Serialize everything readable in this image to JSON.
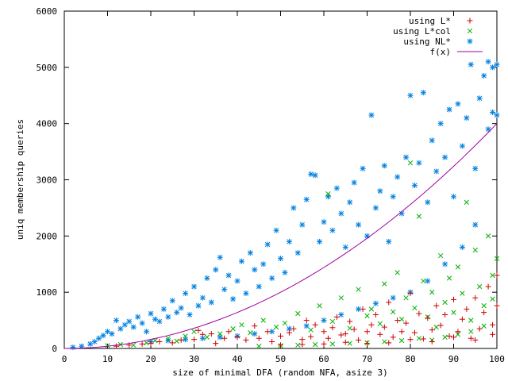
{
  "chart_data": {
    "type": "scatter",
    "xlabel": "size of minimal DFA (random NFA, asize 3)",
    "ylabel": "uniq membership queries",
    "xlim": [
      0,
      100
    ],
    "ylim": [
      0,
      6000
    ],
    "x_ticks": [
      0,
      10,
      20,
      30,
      40,
      50,
      60,
      70,
      80,
      90,
      100
    ],
    "y_ticks": [
      0,
      1000,
      2000,
      3000,
      4000,
      5000,
      6000
    ],
    "x_tick_labels": [
      "0",
      "10",
      "20",
      "30",
      "40",
      "50",
      "60",
      "70",
      "80",
      "90",
      "100"
    ],
    "y_tick_labels": [
      "0",
      "1000",
      "2000",
      "3000",
      "4000",
      "5000",
      "6000"
    ],
    "grid": false,
    "legend_position": "top-right",
    "series": [
      {
        "name": "using L*",
        "marker": "plus",
        "color": "#cc0000",
        "points": [
          [
            12,
            40
          ],
          [
            15,
            60
          ],
          [
            18,
            80
          ],
          [
            20,
            90
          ],
          [
            22,
            120
          ],
          [
            25,
            100
          ],
          [
            27,
            150
          ],
          [
            30,
            160
          ],
          [
            31,
            320
          ],
          [
            32,
            250
          ],
          [
            34,
            260
          ],
          [
            35,
            90
          ],
          [
            37,
            180
          ],
          [
            38,
            300
          ],
          [
            40,
            200
          ],
          [
            42,
            150
          ],
          [
            44,
            400
          ],
          [
            45,
            180
          ],
          [
            47,
            300
          ],
          [
            48,
            120
          ],
          [
            50,
            220
          ],
          [
            52,
            280
          ],
          [
            53,
            350
          ],
          [
            55,
            160
          ],
          [
            56,
            500
          ],
          [
            57,
            210
          ],
          [
            58,
            420
          ],
          [
            60,
            300
          ],
          [
            61,
            180
          ],
          [
            62,
            370
          ],
          [
            63,
            560
          ],
          [
            64,
            240
          ],
          [
            65,
            260
          ],
          [
            66,
            480
          ],
          [
            67,
            340
          ],
          [
            68,
            150
          ],
          [
            69,
            700
          ],
          [
            70,
            300
          ],
          [
            71,
            420
          ],
          [
            72,
            600
          ],
          [
            73,
            250
          ],
          [
            74,
            380
          ],
          [
            75,
            820
          ],
          [
            76,
            200
          ],
          [
            77,
            500
          ],
          [
            78,
            300
          ],
          [
            79,
            450
          ],
          [
            80,
            980
          ],
          [
            81,
            280
          ],
          [
            82,
            620
          ],
          [
            83,
            170
          ],
          [
            84,
            540
          ],
          [
            85,
            330
          ],
          [
            86,
            760
          ],
          [
            87,
            410
          ],
          [
            88,
            600
          ],
          [
            89,
            220
          ],
          [
            90,
            870
          ],
          [
            91,
            300
          ],
          [
            92,
            520
          ],
          [
            93,
            700
          ],
          [
            94,
            180
          ],
          [
            95,
            900
          ],
          [
            96,
            350
          ],
          [
            97,
            640
          ],
          [
            98,
            1100
          ],
          [
            99,
            420
          ],
          [
            100,
            760
          ],
          [
            100,
            1300
          ],
          [
            99,
            250
          ],
          [
            95,
            150
          ],
          [
            90,
            200
          ],
          [
            85,
            120
          ],
          [
            80,
            160
          ],
          [
            75,
            100
          ],
          [
            70,
            90
          ],
          [
            65,
            110
          ],
          [
            60,
            80
          ],
          [
            55,
            70
          ],
          [
            50,
            60
          ]
        ]
      },
      {
        "name": "using L*col",
        "marker": "cross",
        "color": "#00b000",
        "points": [
          [
            10,
            50
          ],
          [
            13,
            70
          ],
          [
            16,
            60
          ],
          [
            19,
            100
          ],
          [
            21,
            140
          ],
          [
            24,
            180
          ],
          [
            26,
            130
          ],
          [
            28,
            220
          ],
          [
            30,
            300
          ],
          [
            33,
            200
          ],
          [
            36,
            260
          ],
          [
            39,
            350
          ],
          [
            41,
            420
          ],
          [
            43,
            280
          ],
          [
            46,
            500
          ],
          [
            49,
            380
          ],
          [
            51,
            450
          ],
          [
            54,
            620
          ],
          [
            57,
            330
          ],
          [
            59,
            760
          ],
          [
            61,
            2750
          ],
          [
            62,
            480
          ],
          [
            64,
            900
          ],
          [
            66,
            360
          ],
          [
            68,
            1050
          ],
          [
            70,
            580
          ],
          [
            71,
            700
          ],
          [
            73,
            440
          ],
          [
            74,
            1150
          ],
          [
            76,
            650
          ],
          [
            77,
            1350
          ],
          [
            78,
            520
          ],
          [
            79,
            900
          ],
          [
            80,
            3300
          ],
          [
            81,
            720
          ],
          [
            82,
            2350
          ],
          [
            83,
            1200
          ],
          [
            84,
            560
          ],
          [
            85,
            1000
          ],
          [
            86,
            380
          ],
          [
            87,
            1650
          ],
          [
            88,
            820
          ],
          [
            89,
            1250
          ],
          [
            90,
            640
          ],
          [
            91,
            1450
          ],
          [
            92,
            980
          ],
          [
            93,
            2600
          ],
          [
            94,
            500
          ],
          [
            95,
            1750
          ],
          [
            96,
            1100
          ],
          [
            97,
            760
          ],
          [
            98,
            2000
          ],
          [
            99,
            1300
          ],
          [
            100,
            1600
          ],
          [
            99,
            880
          ],
          [
            97,
            400
          ],
          [
            94,
            300
          ],
          [
            91,
            250
          ],
          [
            88,
            200
          ],
          [
            85,
            150
          ],
          [
            82,
            180
          ],
          [
            78,
            140
          ],
          [
            74,
            120
          ],
          [
            70,
            100
          ],
          [
            66,
            90
          ],
          [
            62,
            80
          ],
          [
            58,
            70
          ],
          [
            54,
            60
          ],
          [
            50,
            50
          ],
          [
            45,
            40
          ]
        ]
      },
      {
        "name": "using NL*",
        "marker": "star",
        "color": "#0080e0",
        "points": [
          [
            2,
            20
          ],
          [
            4,
            40
          ],
          [
            6,
            80
          ],
          [
            7,
            120
          ],
          [
            8,
            180
          ],
          [
            9,
            230
          ],
          [
            10,
            300
          ],
          [
            11,
            260
          ],
          [
            12,
            500
          ],
          [
            13,
            350
          ],
          [
            14,
            420
          ],
          [
            15,
            480
          ],
          [
            16,
            380
          ],
          [
            17,
            560
          ],
          [
            18,
            450
          ],
          [
            19,
            300
          ],
          [
            20,
            620
          ],
          [
            21,
            520
          ],
          [
            22,
            480
          ],
          [
            23,
            700
          ],
          [
            24,
            560
          ],
          [
            25,
            850
          ],
          [
            26,
            640
          ],
          [
            27,
            720
          ],
          [
            28,
            980
          ],
          [
            29,
            600
          ],
          [
            30,
            1100
          ],
          [
            31,
            760
          ],
          [
            32,
            900
          ],
          [
            33,
            1250
          ],
          [
            34,
            820
          ],
          [
            35,
            1400
          ],
          [
            36,
            1620
          ],
          [
            37,
            1050
          ],
          [
            38,
            1300
          ],
          [
            39,
            880
          ],
          [
            40,
            1200
          ],
          [
            41,
            1550
          ],
          [
            42,
            980
          ],
          [
            43,
            1700
          ],
          [
            44,
            1400
          ],
          [
            45,
            1100
          ],
          [
            46,
            1500
          ],
          [
            47,
            1850
          ],
          [
            48,
            1250
          ],
          [
            49,
            2100
          ],
          [
            50,
            1600
          ],
          [
            51,
            1350
          ],
          [
            52,
            1900
          ],
          [
            53,
            2500
          ],
          [
            54,
            1700
          ],
          [
            55,
            2200
          ],
          [
            56,
            2650
          ],
          [
            57,
            3100
          ],
          [
            58,
            3080
          ],
          [
            59,
            1900
          ],
          [
            60,
            2250
          ],
          [
            61,
            2700
          ],
          [
            62,
            2100
          ],
          [
            63,
            2850
          ],
          [
            64,
            2400
          ],
          [
            65,
            1800
          ],
          [
            66,
            2600
          ],
          [
            67,
            2950
          ],
          [
            68,
            2200
          ],
          [
            69,
            3200
          ],
          [
            70,
            2000
          ],
          [
            71,
            4150
          ],
          [
            72,
            2500
          ],
          [
            73,
            2800
          ],
          [
            74,
            3250
          ],
          [
            75,
            1900
          ],
          [
            76,
            2700
          ],
          [
            77,
            3050
          ],
          [
            78,
            2400
          ],
          [
            79,
            3400
          ],
          [
            80,
            4500
          ],
          [
            81,
            2900
          ],
          [
            82,
            3300
          ],
          [
            83,
            4550
          ],
          [
            84,
            2600
          ],
          [
            85,
            3700
          ],
          [
            86,
            3150
          ],
          [
            87,
            4000
          ],
          [
            88,
            3400
          ],
          [
            89,
            4250
          ],
          [
            90,
            2700
          ],
          [
            91,
            4350
          ],
          [
            92,
            3600
          ],
          [
            93,
            4100
          ],
          [
            94,
            5050
          ],
          [
            95,
            3200
          ],
          [
            96,
            4450
          ],
          [
            97,
            4850
          ],
          [
            98,
            5100
          ],
          [
            98,
            3900
          ],
          [
            99,
            4200
          ],
          [
            99,
            5000
          ],
          [
            100,
            5050
          ],
          [
            100,
            4150
          ],
          [
            95,
            2200
          ],
          [
            92,
            1800
          ],
          [
            88,
            1500
          ],
          [
            84,
            1200
          ],
          [
            80,
            1000
          ],
          [
            76,
            900
          ],
          [
            72,
            800
          ],
          [
            68,
            700
          ],
          [
            64,
            600
          ],
          [
            60,
            500
          ],
          [
            56,
            400
          ],
          [
            52,
            350
          ],
          [
            48,
            300
          ],
          [
            44,
            260
          ],
          [
            40,
            220
          ],
          [
            36,
            200
          ],
          [
            32,
            180
          ],
          [
            28,
            160
          ],
          [
            24,
            140
          ],
          [
            20,
            120
          ]
        ]
      },
      {
        "name": "f(x)",
        "marker": "line",
        "color": "#a000a0",
        "function": "0.4*x^2",
        "x_range": [
          0,
          100
        ]
      }
    ]
  }
}
